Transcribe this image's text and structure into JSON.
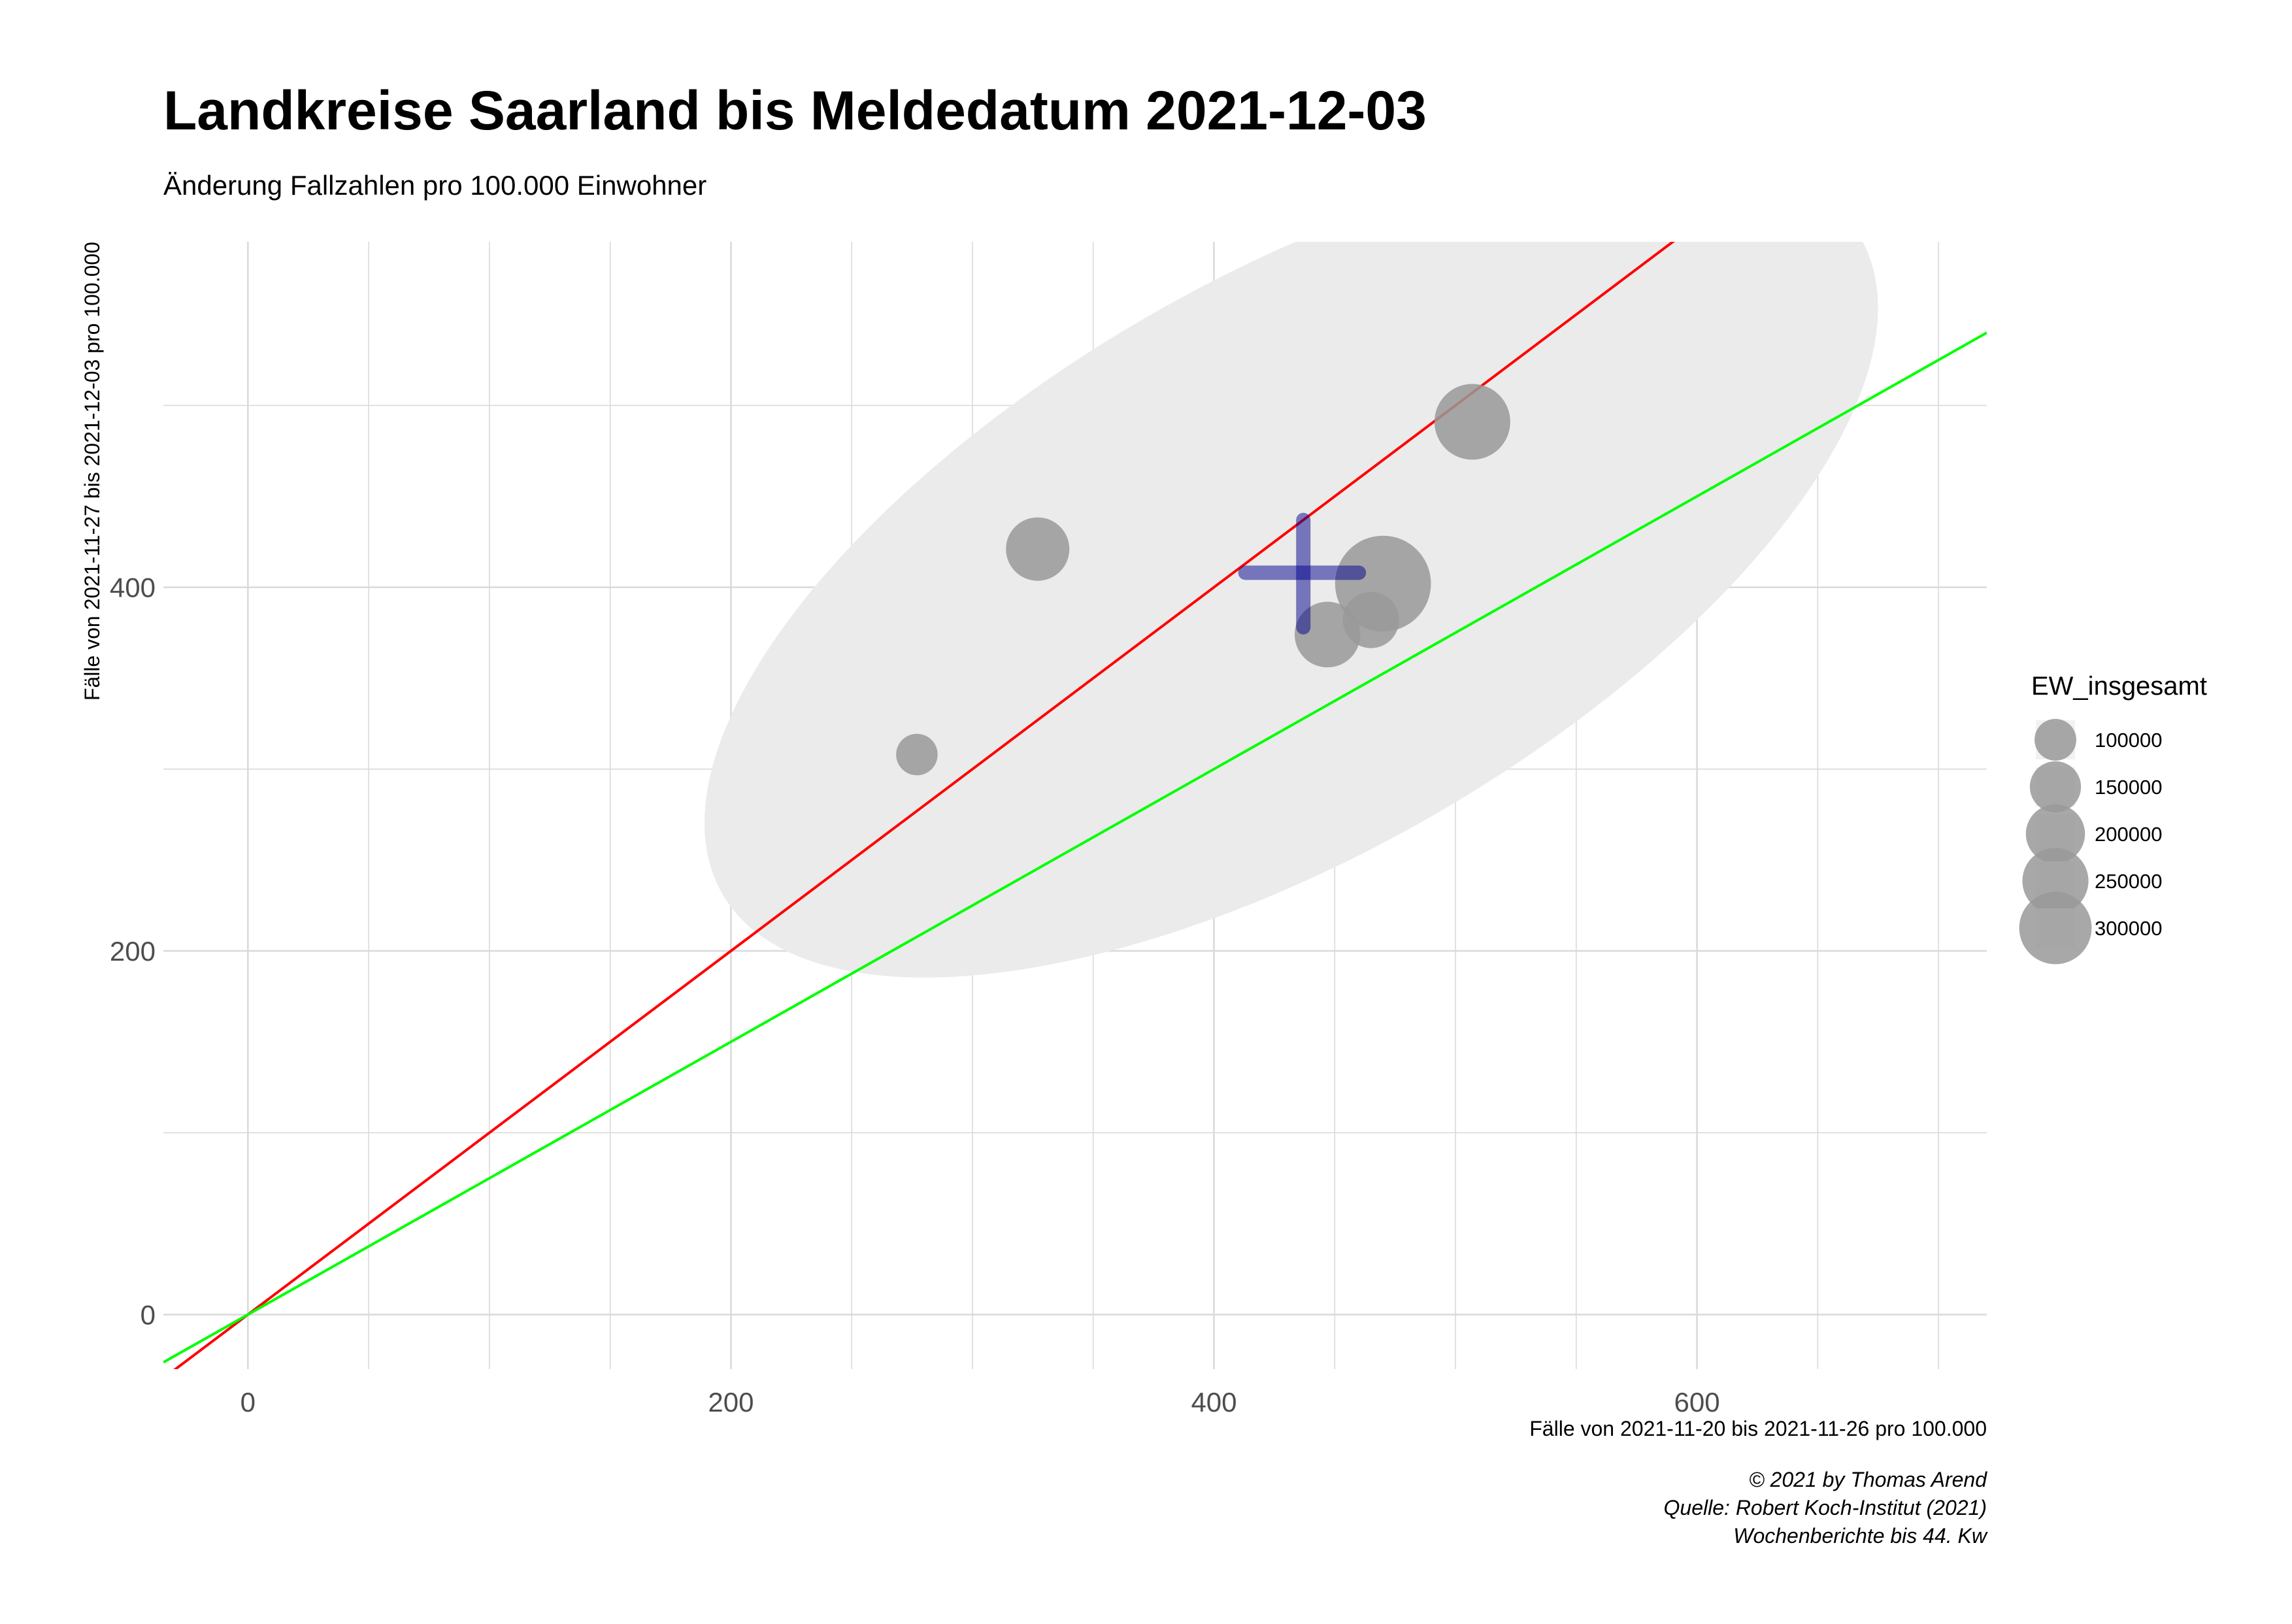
{
  "chart_data": {
    "type": "scatter",
    "title": "Landkreise Saarland bis Meldedatum 2021-12-03",
    "subtitle": "Änderung Fallzahlen pro 100.000 Einwohner",
    "xlabel": "Fälle von 2021-11-20 bis 2021-11-26 pro 100.000",
    "ylabel": "Fälle von 2021-11-27 bis 2021-12-03 pro 100.000",
    "xlim": [
      -35,
      720
    ],
    "ylim": [
      -30,
      590
    ],
    "x_ticks": [
      0,
      200,
      400,
      600
    ],
    "x_tick_labels": [
      "0",
      "200",
      "400",
      "600"
    ],
    "y_ticks": [
      0,
      200,
      400
    ],
    "y_tick_labels": [
      "0",
      "200",
      "400"
    ],
    "grid": true,
    "points": [
      {
        "x": 277,
        "y": 308,
        "size": 60000
      },
      {
        "x": 327,
        "y": 421,
        "size": 140000
      },
      {
        "x": 447,
        "y": 374,
        "size": 150000
      },
      {
        "x": 465,
        "y": 382,
        "size": 110000
      },
      {
        "x": 470,
        "y": 402,
        "size": 320000
      },
      {
        "x": 507,
        "y": 491,
        "size": 200000
      }
    ],
    "mean_cross": {
      "x": 437,
      "y": 408,
      "x_range": [
        413,
        460
      ],
      "y_range": [
        378,
        437
      ],
      "color": "#00008B"
    },
    "ellipse": {
      "cx": 432,
      "cy": 412,
      "rx": 272,
      "ry": 119,
      "angle_deg": 30,
      "color": "#EBEBEB"
    },
    "reference_lines": [
      {
        "slope": 1,
        "intercept": 0,
        "color": "#FF0000"
      },
      {
        "slope": 0.75,
        "intercept": 0,
        "color": "#00FF00"
      }
    ],
    "legend": {
      "title": "EW_insgesamt",
      "position": "right",
      "items": [
        {
          "label": "100000",
          "size": 100000
        },
        {
          "label": "150000",
          "size": 150000
        },
        {
          "label": "200000",
          "size": 200000
        },
        {
          "label": "250000",
          "size": 250000
        },
        {
          "label": "300000",
          "size": 300000
        }
      ]
    },
    "caption": [
      "© 2021 by Thomas Arend",
      "Quelle: Robert Koch-Institut (2021)",
      "Wochenberichte bis 44. Kw"
    ],
    "point_color": "#999999"
  }
}
